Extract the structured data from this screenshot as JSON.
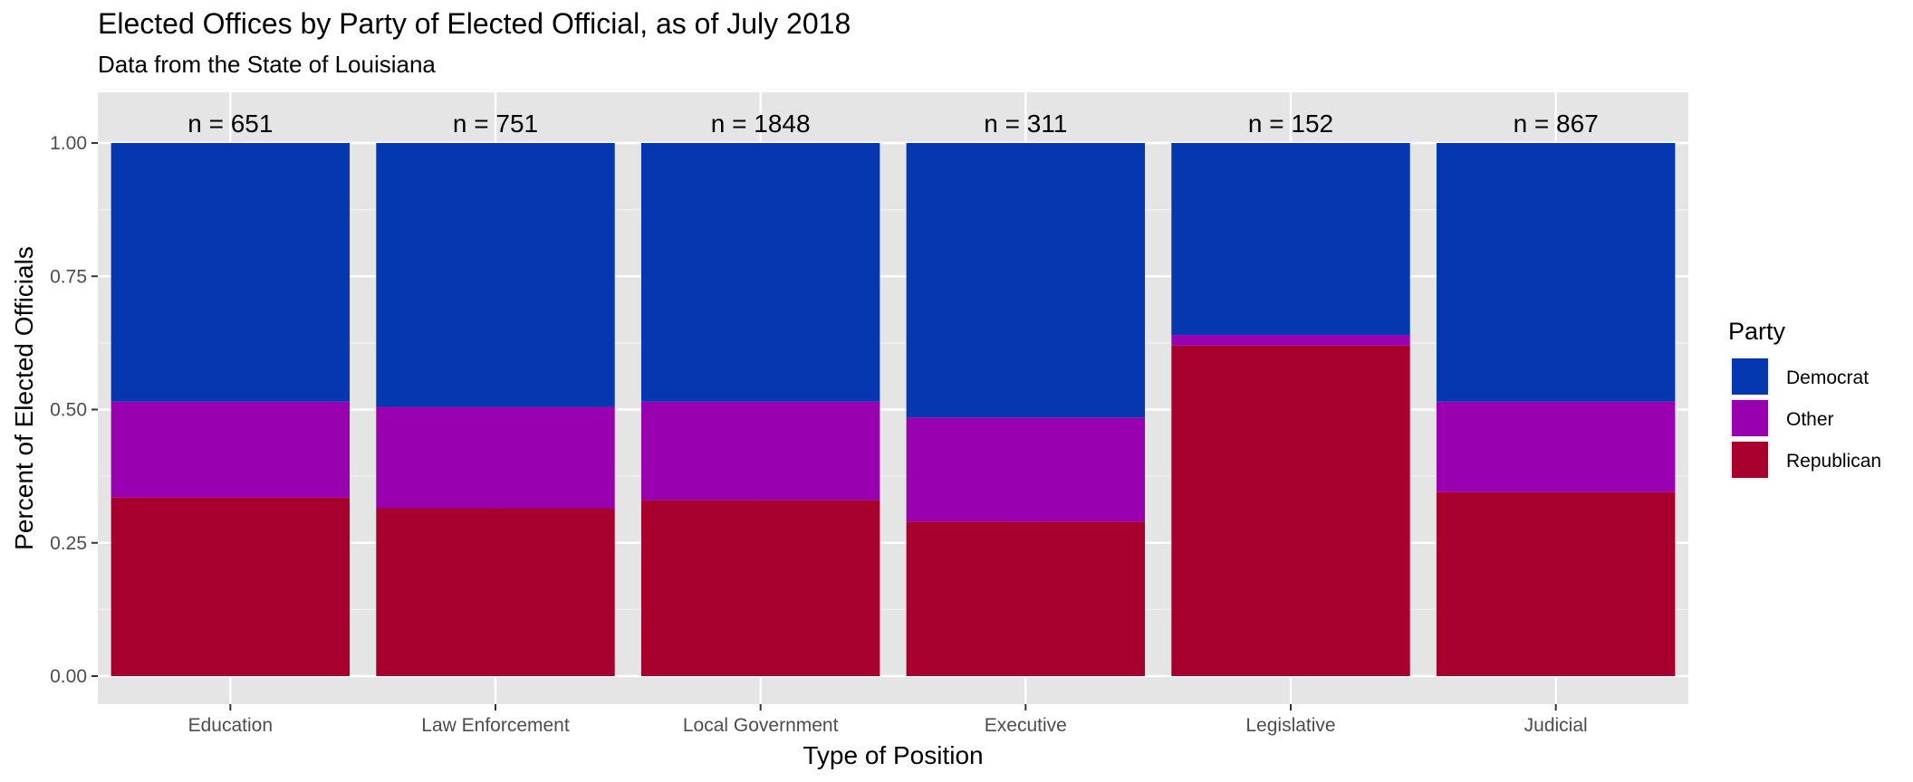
{
  "chart_data": {
    "type": "bar",
    "stacked": true,
    "title": "Elected Offices by Party of Elected Official, as of July 2018",
    "subtitle": "Data from the State of Louisiana",
    "xlabel": "Type of Position",
    "ylabel": "Percent of Elected Officials",
    "ylim": [
      0,
      1.0
    ],
    "yticks": [
      "0.00",
      "0.25",
      "0.50",
      "0.75",
      "1.00"
    ],
    "ytick_values": [
      0,
      0.25,
      0.5,
      0.75,
      1.0
    ],
    "categories": [
      "Education",
      "Law Enforcement",
      "Local Government",
      "Executive",
      "Legislative",
      "Judicial"
    ],
    "n_labels": [
      "n = 651",
      "n = 751",
      "n = 1848",
      "n = 311",
      "n = 152",
      "n = 867"
    ],
    "series": [
      {
        "name": "Republican",
        "color": "#a8002e",
        "values": [
          0.335,
          0.315,
          0.33,
          0.29,
          0.62,
          0.345
        ]
      },
      {
        "name": "Other",
        "color": "#9900b0",
        "values": [
          0.18,
          0.19,
          0.185,
          0.195,
          0.02,
          0.17
        ]
      },
      {
        "name": "Democrat",
        "color": "#0437b0",
        "values": [
          0.485,
          0.495,
          0.485,
          0.515,
          0.36,
          0.485
        ]
      }
    ],
    "legend": {
      "title": "Party",
      "placement": "right",
      "entries": [
        {
          "name": "Democrat",
          "color": "#0437b0"
        },
        {
          "name": "Other",
          "color": "#9900b0"
        },
        {
          "name": "Republican",
          "color": "#a8002e"
        }
      ]
    },
    "grid": true,
    "panel_background": "#e5e5e5",
    "grid_color": "#ffffff"
  }
}
